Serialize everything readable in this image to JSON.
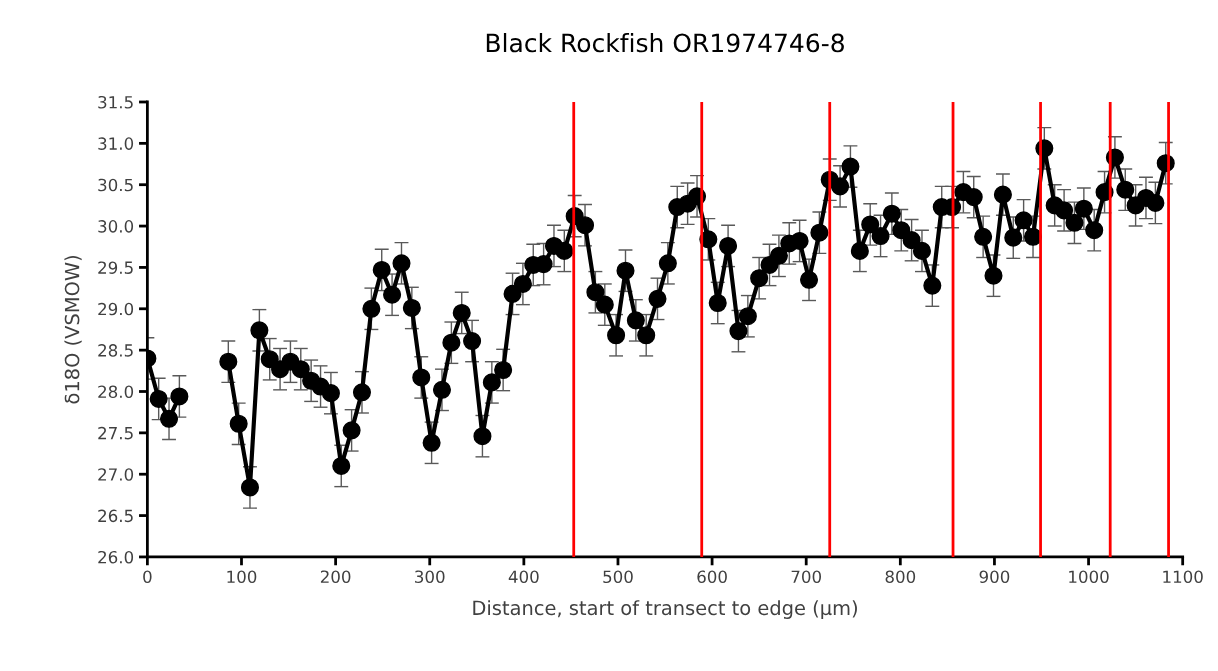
{
  "chart_data": {
    "type": "line",
    "title": "Black Rockfish OR1974746-8",
    "xlabel": "Distance, start of transect to edge (µm)",
    "ylabel": "δ18O (VSMOW)",
    "x": [
      0,
      12,
      23,
      34,
      60,
      86,
      97,
      109,
      119,
      130,
      141,
      152,
      163,
      174,
      184,
      195,
      206,
      217,
      228,
      238,
      249,
      260,
      270,
      281,
      291,
      302,
      313,
      323,
      334,
      345,
      356,
      366,
      378,
      388,
      399,
      410,
      421,
      432,
      443,
      454,
      465,
      476,
      486,
      498,
      508,
      519,
      530,
      542,
      553,
      563,
      574,
      584,
      596,
      606,
      617,
      628,
      638,
      650,
      661,
      671,
      682,
      693,
      703,
      714,
      725,
      736,
      747,
      757,
      768,
      779,
      791,
      801,
      812,
      823,
      834,
      844,
      855,
      867,
      878,
      888,
      899,
      909,
      920,
      931,
      941,
      953,
      964,
      974,
      985,
      995,
      1006,
      1017,
      1028,
      1039,
      1050,
      1061,
      1071,
      1082
    ],
    "series": [
      {
        "color": "#000000",
        "values": [
          28.4,
          27.91,
          27.67,
          27.94,
          null,
          28.36,
          27.61,
          26.84,
          28.74,
          28.39,
          28.27,
          28.36,
          28.27,
          28.13,
          28.06,
          27.98,
          27.1,
          27.53,
          27.99,
          29.0,
          29.47,
          29.17,
          29.55,
          29.01,
          28.17,
          27.38,
          28.02,
          28.59,
          28.95,
          28.61,
          27.46,
          28.11,
          28.26,
          29.18,
          29.3,
          29.53,
          29.54,
          29.76,
          29.7,
          30.12,
          30.01,
          29.2,
          29.05,
          28.68,
          29.46,
          28.86,
          28.68,
          29.12,
          29.55,
          30.23,
          30.27,
          30.36,
          29.84,
          29.07,
          29.76,
          28.73,
          28.91,
          29.37,
          29.53,
          29.64,
          29.79,
          29.82,
          29.35,
          29.92,
          30.56,
          30.48,
          30.72,
          29.7,
          30.02,
          29.88,
          30.15,
          29.95,
          29.83,
          29.7,
          29.28,
          30.23,
          30.23,
          30.41,
          30.35,
          29.87,
          29.4,
          30.38,
          29.86,
          30.07,
          29.87,
          30.94,
          30.25,
          30.19,
          30.04,
          30.21,
          29.95,
          30.41,
          30.83,
          30.44,
          30.25,
          30.34,
          30.28,
          30.76
        ],
        "errors": [
          0.25,
          0.25,
          0.25,
          0.25,
          null,
          0.25,
          0.25,
          0.25,
          0.25,
          0.25,
          0.25,
          0.25,
          0.25,
          0.25,
          0.25,
          0.25,
          0.25,
          0.25,
          0.25,
          0.25,
          0.25,
          0.25,
          0.25,
          0.25,
          0.25,
          0.25,
          0.25,
          0.25,
          0.25,
          0.25,
          0.25,
          0.25,
          0.25,
          0.25,
          0.25,
          0.25,
          0.25,
          0.25,
          0.25,
          0.25,
          0.25,
          0.25,
          0.25,
          0.25,
          0.25,
          0.25,
          0.25,
          0.25,
          0.25,
          0.25,
          0.25,
          0.25,
          0.25,
          0.25,
          0.25,
          0.25,
          0.25,
          0.25,
          0.25,
          0.25,
          0.25,
          0.25,
          0.25,
          0.25,
          0.25,
          0.25,
          0.25,
          0.25,
          0.25,
          0.25,
          0.25,
          0.25,
          0.25,
          0.25,
          0.25,
          0.25,
          0.25,
          0.25,
          0.25,
          0.25,
          0.25,
          0.25,
          0.25,
          0.25,
          0.25,
          0.25,
          0.25,
          0.25,
          0.25,
          0.25,
          0.25,
          0.25,
          0.25,
          0.25,
          0.25,
          0.25,
          0.25,
          0.25
        ]
      }
    ],
    "marker": "circle",
    "line_style": "solid",
    "grid": false,
    "legend": false,
    "xlim": [
      0,
      1100
    ],
    "xticks": [
      0,
      100,
      200,
      300,
      400,
      500,
      600,
      700,
      800,
      900,
      1000,
      1100
    ],
    "ylim": [
      26.0,
      31.5
    ],
    "yticks": [
      {
        "value": 26.0,
        "label": "26.0"
      },
      {
        "value": 26.5,
        "label": "26.5"
      },
      {
        "value": 27.0,
        "label": "27.0"
      },
      {
        "value": 27.5,
        "label": "27.5"
      },
      {
        "value": 28.0,
        "label": "28.0"
      },
      {
        "value": 28.5,
        "label": "28.5"
      },
      {
        "value": 29.0,
        "label": "29.0"
      },
      {
        "value": 29.5,
        "label": "29.5"
      },
      {
        "value": 30.0,
        "label": "30.0"
      },
      {
        "value": 30.5,
        "label": "30.5"
      },
      {
        "value": 31.0,
        "label": "31.0"
      },
      {
        "value": 31.5,
        "label": "31.5"
      }
    ],
    "ref_lines": [
      {
        "axis": "x",
        "value": 453,
        "color": "#ff0000"
      },
      {
        "axis": "x",
        "value": 589,
        "color": "#ff0000"
      },
      {
        "axis": "x",
        "value": 725,
        "color": "#ff0000"
      },
      {
        "axis": "x",
        "value": 856,
        "color": "#ff0000"
      },
      {
        "axis": "x",
        "value": 949,
        "color": "#ff0000"
      },
      {
        "axis": "x",
        "value": 1023,
        "color": "#ff0000"
      },
      {
        "axis": "x",
        "value": 1085,
        "color": "#ff0000"
      }
    ]
  }
}
